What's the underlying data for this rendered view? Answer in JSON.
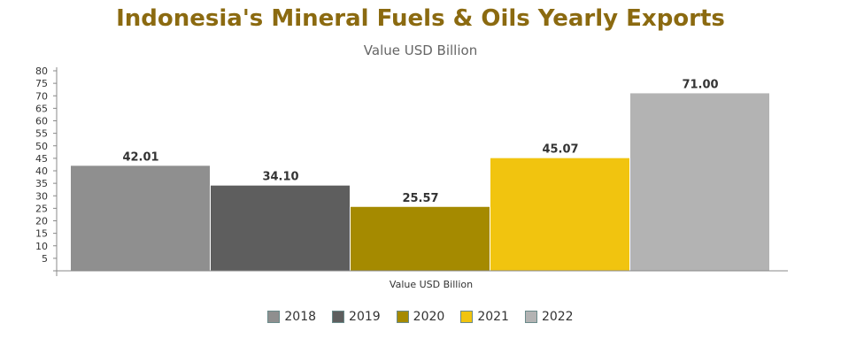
{
  "chart_data": {
    "type": "bar",
    "title": "Indonesia's Mineral Fuels & Oils Yearly Exports",
    "subtitle": "Value USD Billion",
    "xlabel": "Value USD Billion",
    "ylabel": "",
    "categories": [
      "Value USD Billion"
    ],
    "ylim": [
      0,
      80
    ],
    "yticks": [
      5,
      10,
      15,
      20,
      25,
      30,
      35,
      40,
      45,
      50,
      55,
      60,
      65,
      70,
      75,
      80
    ],
    "grid": false,
    "legend_position": "bottom",
    "series": [
      {
        "name": "2018",
        "values": [
          42.01
        ],
        "label": "42.01",
        "color": "#8f8f8f"
      },
      {
        "name": "2019",
        "values": [
          34.1
        ],
        "label": "34.10",
        "color": "#5e5e5e"
      },
      {
        "name": "2020",
        "values": [
          25.57
        ],
        "label": "25.57",
        "color": "#a58a00"
      },
      {
        "name": "2021",
        "values": [
          45.07
        ],
        "label": "45.07",
        "color": "#f1c40f"
      },
      {
        "name": "2022",
        "values": [
          71.0
        ],
        "label": "71.00",
        "color": "#b3b3b3"
      }
    ]
  }
}
